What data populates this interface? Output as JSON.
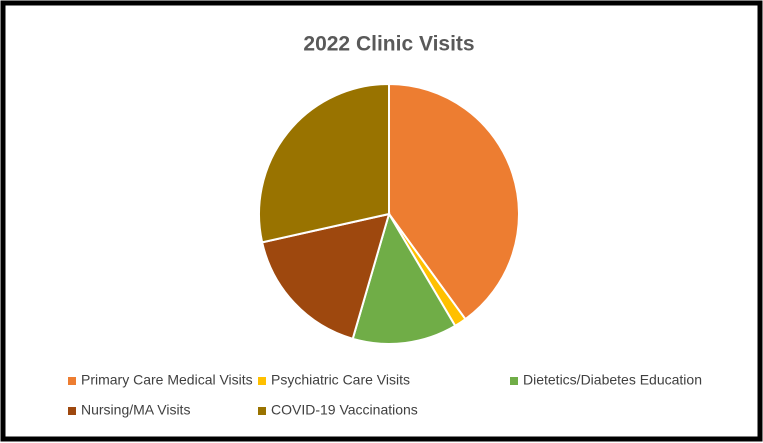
{
  "chart_data": {
    "type": "pie",
    "title": "2022 Clinic Visits",
    "categories": [
      "Primary Care Medical Visits",
      "Psychiatric Care Visits",
      "Dietetics/Diabetes Education",
      "Nursing/MA Visits",
      "COVID-19 Vaccinations"
    ],
    "values": [
      40,
      1.5,
      13,
      17,
      28.5
    ],
    "colors": [
      "#ED7D31",
      "#FFC000",
      "#70AD47",
      "#9E480E",
      "#997300"
    ],
    "legend": "bottom"
  }
}
